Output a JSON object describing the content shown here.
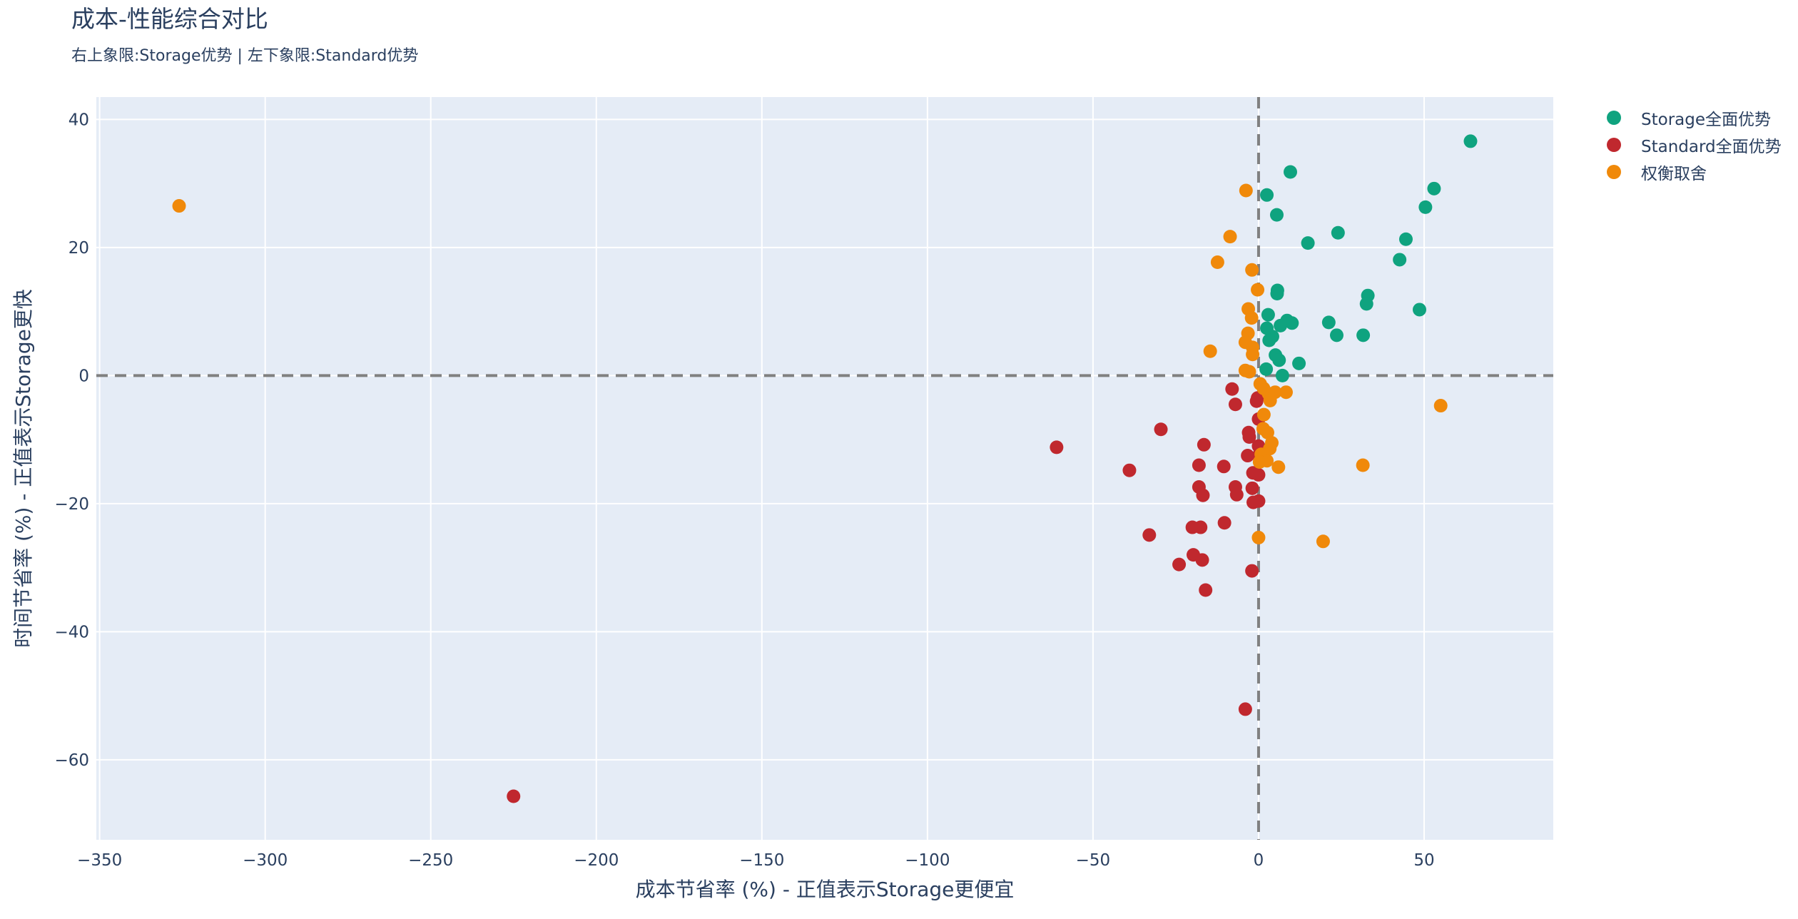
{
  "chart_data": {
    "type": "scatter",
    "title": "成本-性能综合对比",
    "subtitle": "右上象限:Storage优势 | 左下象限:Standard优势",
    "xlabel": "成本节省率 (%) - 正值表示Storage更便宜",
    "ylabel": "时间节省率 (%) - 正值表示Storage更快",
    "xlim": [
      -351,
      89
    ],
    "ylim": [
      -72.5,
      43.5
    ],
    "x_ticks": [
      -350,
      -300,
      -250,
      -200,
      -150,
      -100,
      -50,
      0,
      50
    ],
    "y_ticks": [
      -60,
      -40,
      -20,
      0,
      20,
      40
    ],
    "x_tick_labels": [
      "−350",
      "−300",
      "−250",
      "−200",
      "−150",
      "−100",
      "−50",
      "0",
      "50"
    ],
    "y_tick_labels": [
      "−60",
      "−40",
      "−20",
      "0",
      "20",
      "40"
    ],
    "reference_lines": [
      {
        "axis": "x",
        "value": 0
      },
      {
        "axis": "y",
        "value": 0
      }
    ],
    "grid": true,
    "legend_position": "top-right",
    "series": [
      {
        "name": "Storage全面优势",
        "color": "#0fa37f",
        "points": [
          [
            64,
            36.6
          ],
          [
            53,
            29.2
          ],
          [
            50.4,
            26.3
          ],
          [
            44.5,
            21.3
          ],
          [
            42.6,
            18.1
          ],
          [
            48.6,
            10.3
          ],
          [
            33,
            12.5
          ],
          [
            32.6,
            11.2
          ],
          [
            31.6,
            6.3
          ],
          [
            21.2,
            8.3
          ],
          [
            23.6,
            6.3
          ],
          [
            24,
            22.3
          ],
          [
            14.9,
            20.7
          ],
          [
            9.6,
            31.8
          ],
          [
            2.5,
            28.2
          ],
          [
            5.5,
            25.1
          ],
          [
            5.7,
            13.3
          ],
          [
            5.6,
            12.8
          ],
          [
            2.9,
            9.5
          ],
          [
            8.6,
            8.6
          ],
          [
            10.1,
            8.2
          ],
          [
            6.6,
            7.8
          ],
          [
            2.5,
            7.4
          ],
          [
            4.2,
            6.1
          ],
          [
            3.2,
            5.5
          ],
          [
            5.1,
            3.2
          ],
          [
            6.2,
            2.4
          ],
          [
            12.2,
            1.9
          ],
          [
            2.3,
            1
          ],
          [
            7.2,
            0
          ]
        ]
      },
      {
        "name": "Standard全面优势",
        "color": "#c0282e",
        "points": [
          [
            -225,
            -65.7
          ],
          [
            -61,
            -11.2
          ],
          [
            -39,
            -14.8
          ],
          [
            -29.5,
            -8.4
          ],
          [
            -33,
            -24.9
          ],
          [
            -24,
            -29.5
          ],
          [
            -20,
            -23.7
          ],
          [
            -17.5,
            -23.7
          ],
          [
            -19.7,
            -28
          ],
          [
            -17,
            -28.8
          ],
          [
            -16,
            -33.5
          ],
          [
            -16.8,
            -18.7
          ],
          [
            -18,
            -17.4
          ],
          [
            -18,
            -14
          ],
          [
            -16.5,
            -10.8
          ],
          [
            -10.5,
            -14.2
          ],
          [
            -7,
            -17.4
          ],
          [
            -6.6,
            -18.6
          ],
          [
            -10.3,
            -23
          ],
          [
            -8,
            -2.1
          ],
          [
            -7,
            -4.5
          ],
          [
            -2.8,
            -9.6
          ],
          [
            -3,
            -8.9
          ],
          [
            -3.3,
            -12.5
          ],
          [
            -1.7,
            -15.2
          ],
          [
            -1.6,
            -19.8
          ],
          [
            -1.9,
            -17.6
          ],
          [
            0,
            -19.6
          ],
          [
            0,
            -15.5
          ],
          [
            -2,
            -30.5
          ],
          [
            -4,
            -52.1
          ],
          [
            -0.3,
            -3.5
          ],
          [
            -0.6,
            -4
          ],
          [
            0,
            -6.8
          ],
          [
            0,
            -11
          ],
          [
            0,
            -12.5
          ]
        ]
      },
      {
        "name": "权衡取舍",
        "color": "#f0890a",
        "points": [
          [
            -326,
            26.5
          ],
          [
            -3.8,
            28.9
          ],
          [
            -8.6,
            21.7
          ],
          [
            -12.4,
            17.7
          ],
          [
            -2,
            16.5
          ],
          [
            -0.3,
            13.4
          ],
          [
            -3.1,
            10.4
          ],
          [
            -2.1,
            9
          ],
          [
            -3.2,
            6.6
          ],
          [
            -4,
            5.2
          ],
          [
            -1.8,
            4.4
          ],
          [
            -14.6,
            3.8
          ],
          [
            -1.8,
            3.3
          ],
          [
            -4,
            0.8
          ],
          [
            -2.8,
            0.6
          ],
          [
            0.5,
            -1.3
          ],
          [
            1.5,
            -2
          ],
          [
            3,
            -2.8
          ],
          [
            5,
            -2.6
          ],
          [
            8.3,
            -2.6
          ],
          [
            3.5,
            -3.9
          ],
          [
            1.6,
            -6.1
          ],
          [
            1.4,
            -8.3
          ],
          [
            2.7,
            -8.9
          ],
          [
            4,
            -10.5
          ],
          [
            3.4,
            -11.4
          ],
          [
            0.8,
            -12.3
          ],
          [
            2.5,
            -13.3
          ],
          [
            0.3,
            -13.5
          ],
          [
            6,
            -14.3
          ],
          [
            31.5,
            -14
          ],
          [
            0,
            -25.3
          ],
          [
            19.5,
            -25.9
          ],
          [
            55,
            -4.7
          ]
        ]
      }
    ]
  }
}
